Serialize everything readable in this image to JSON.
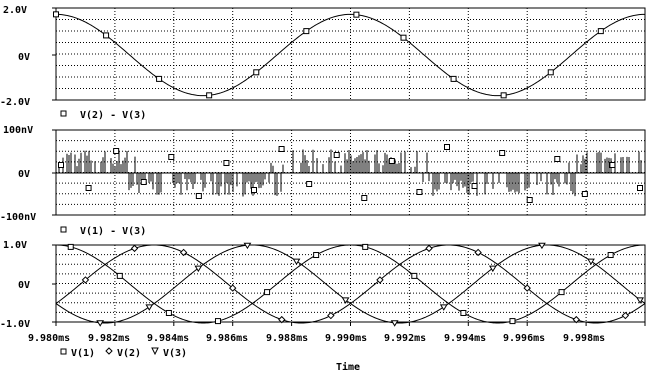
{
  "chart_data": [
    {
      "type": "line",
      "ylim": [
        -2.0,
        2.0
      ],
      "y_ticks": [
        "2.0V",
        "0V",
        "-2.0V"
      ],
      "grid": true,
      "legend": [
        {
          "marker": "square",
          "label": "V(2) - V(3)"
        }
      ],
      "series": [
        {
          "name": "V(2) - V(3)",
          "marker": "square",
          "kind": "sine",
          "amplitude": 1.73,
          "period_ms": 0.01,
          "phase_deg": 90,
          "markers_x_ms": [
            9.98,
            9.9817,
            9.9835,
            9.9852,
            9.9868,
            9.9885,
            9.9902,
            9.9918,
            9.9935,
            9.9952,
            9.9968,
            9.9985
          ]
        }
      ]
    },
    {
      "type": "line",
      "ylim": [
        -100,
        100
      ],
      "y_unit": "nV",
      "y_ticks": [
        "100nV",
        "0V",
        "-100nV"
      ],
      "grid": true,
      "legend": [
        {
          "marker": "square",
          "label": "V(1) - V(3)"
        }
      ],
      "series": [
        {
          "name": "V(1) - V(3)",
          "marker": "square",
          "kind": "numerical-noise",
          "description_range_nV": [
            -55,
            55
          ]
        }
      ]
    },
    {
      "type": "line",
      "ylim": [
        -1.0,
        1.0
      ],
      "y_ticks": [
        "1.0V",
        "0V",
        "-1.0V"
      ],
      "grid": true,
      "xlim": [
        9.98,
        10.0
      ],
      "x_ticks": [
        "9.980ms",
        "9.982ms",
        "9.984ms",
        "9.986ms",
        "9.988ms",
        "9.990ms",
        "9.992ms",
        "9.994ms",
        "9.996ms",
        "9.998ms"
      ],
      "xlabel": "Time",
      "legend": [
        {
          "marker": "square",
          "label": "V(1)"
        },
        {
          "marker": "diamond",
          "label": "V(2)"
        },
        {
          "marker": "triangle",
          "label": "V(3)"
        }
      ],
      "series": [
        {
          "name": "V(1)",
          "marker": "square",
          "kind": "sine",
          "amplitude": 1.0,
          "period_ms": 0.01,
          "phase_deg": 90
        },
        {
          "name": "V(2)",
          "marker": "diamond",
          "kind": "sine",
          "amplitude": 1.0,
          "period_ms": 0.01,
          "phase_deg": -30
        },
        {
          "name": "V(3)",
          "marker": "triangle",
          "kind": "sine",
          "amplitude": 1.0,
          "period_ms": 0.01,
          "phase_deg": 210
        }
      ]
    }
  ]
}
